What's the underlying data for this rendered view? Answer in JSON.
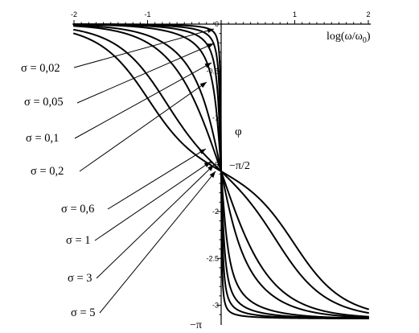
{
  "chart_data": {
    "type": "line",
    "title": "",
    "xlabel": "log(ω/ω",
    "xlabel_sub": "0",
    "xlabel_close": ")",
    "ylabel": "φ",
    "xlim": [
      -2,
      2
    ],
    "ylim": [
      -3.1416,
      0
    ],
    "xticks": [
      -2,
      -1,
      1,
      2
    ],
    "xtick_labels": [
      "-2",
      "-1",
      "1",
      "2"
    ],
    "yticks": [
      0,
      -0.5,
      -1,
      -1.5,
      -2,
      -2.5,
      -3
    ],
    "ytick_labels": [
      "0",
      "-0.5",
      "-1",
      "-1.5",
      "-2",
      "-2.5",
      "-3"
    ],
    "special_labels": [
      "−π/2",
      "−π"
    ],
    "formula": "phi = -atan2(2*sigma*r, 1 - r^2), r = 10^x",
    "series": [
      {
        "name": "σ = 0,02",
        "sigma": 0.02
      },
      {
        "name": "σ = 0,05",
        "sigma": 0.05
      },
      {
        "name": "σ = 0,1",
        "sigma": 0.1
      },
      {
        "name": "σ = 0,2",
        "sigma": 0.2
      },
      {
        "name": "σ = 0,6",
        "sigma": 0.6
      },
      {
        "name": "σ = 1",
        "sigma": 1
      },
      {
        "name": "σ = 3",
        "sigma": 3
      },
      {
        "name": "σ = 5",
        "sigma": 5
      }
    ],
    "grid": false
  }
}
